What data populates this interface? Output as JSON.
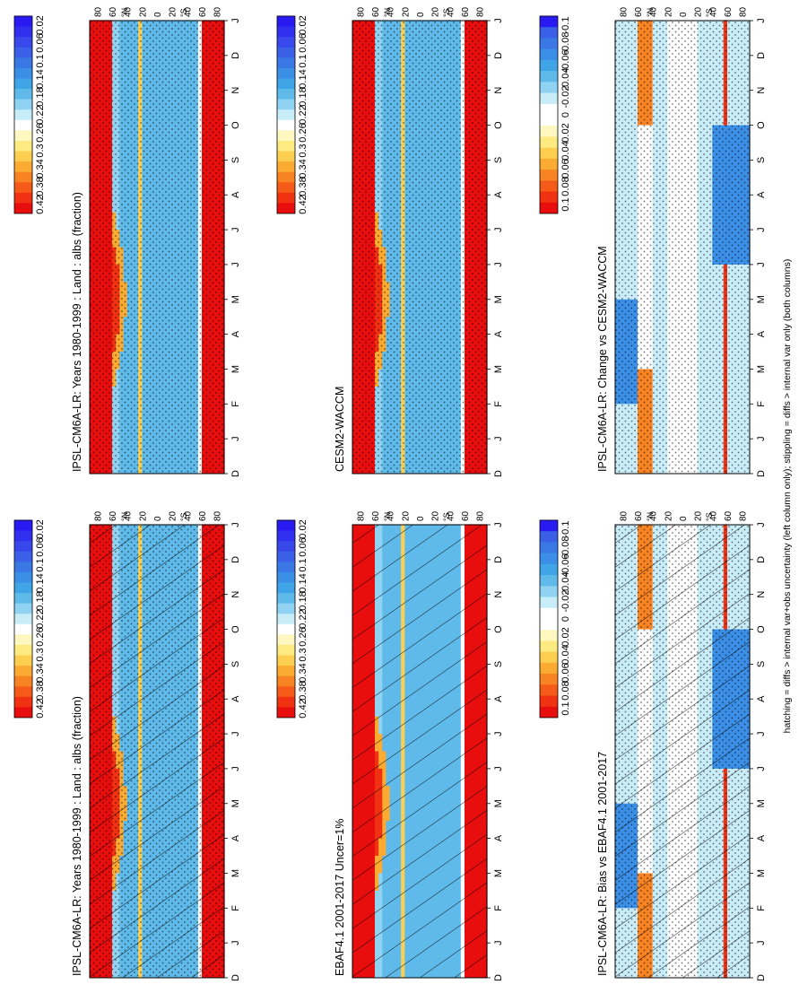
{
  "figure": {
    "footer": "hatching = diffs > internal var+obs uncertainty (left column only); stippling = diffs > internal var only (both columns)"
  },
  "palettes": {
    "abs": [
      "#e80e0e",
      "#f03212",
      "#f55a18",
      "#f88322",
      "#fbaa32",
      "#fdcf50",
      "#fdea80",
      "#fef8c0",
      "#ffffff",
      "#c8ecf8",
      "#8fd2f2",
      "#5fbaea",
      "#3fa5e6",
      "#3b8fe6",
      "#3a78e6",
      "#3a60e8",
      "#3848ea",
      "#3030ee",
      "#2a1af2"
    ],
    "diff": [
      "#e80e0e",
      "#f03212",
      "#f55a18",
      "#f88322",
      "#fbaa32",
      "#fdcf50",
      "#fdea80",
      "#fef8c0",
      "#ffffff",
      "#ffffff",
      "#c8ecf8",
      "#8fd2f2",
      "#5fbaea",
      "#3fa5e6",
      "#3b8fe6",
      "#3a78e6",
      "#3a60e8",
      "#2a1af2"
    ]
  },
  "chart_data": [
    {
      "id": "left-top",
      "type": "heatmap",
      "title": "IPSL-CM6A-LR: Years 1980-1999 : Land : albs (fraction)",
      "x_ticks": [
        "D",
        "J",
        "F",
        "M",
        "A",
        "M",
        "J",
        "J",
        "A",
        "S",
        "O",
        "N",
        "D",
        "J"
      ],
      "y_ticks": [
        "80",
        "60",
        "40",
        "20",
        "0",
        "20",
        "40",
        "60",
        "80"
      ],
      "y_unit_north": "°N",
      "y_unit_south": "°S",
      "colorbar_labels": [
        "0.42",
        "0.38",
        "0.34",
        "0.3",
        "0.26",
        "0.22",
        "0.18",
        "0.14",
        "0.1",
        "0.06",
        "0.02"
      ],
      "hatching": true,
      "stippling": true,
      "field": "abs"
    },
    {
      "id": "left-mid",
      "type": "heatmap",
      "title": "EBAF4.1 2001-2017 Uncer=1%",
      "x_ticks": [
        "D",
        "J",
        "F",
        "M",
        "A",
        "M",
        "J",
        "J",
        "A",
        "S",
        "O",
        "N",
        "D",
        "J"
      ],
      "y_ticks": [
        "80",
        "60",
        "40",
        "20",
        "0",
        "20",
        "40",
        "60",
        "80"
      ],
      "y_unit_north": "°N",
      "y_unit_south": "°S",
      "colorbar_labels": [
        "0.42",
        "0.38",
        "0.34",
        "0.3",
        "0.26",
        "0.22",
        "0.18",
        "0.14",
        "0.1",
        "0.06",
        "0.02"
      ],
      "hatching": true,
      "stippling": false,
      "field": "abs"
    },
    {
      "id": "left-bot",
      "type": "heatmap",
      "title": "IPSL-CM6A-LR: Bias vs EBAF4.1 2001-2017",
      "x_ticks": [
        "D",
        "J",
        "F",
        "M",
        "A",
        "M",
        "J",
        "J",
        "A",
        "S",
        "O",
        "N",
        "D",
        "J"
      ],
      "y_ticks": [
        "80",
        "60",
        "40",
        "20",
        "0",
        "20",
        "40",
        "60",
        "80"
      ],
      "y_unit_north": "°N",
      "y_unit_south": "°S",
      "colorbar_labels": [
        "0.1",
        "0.08",
        "0.06",
        "0.04",
        "0.02",
        "0",
        "-0.02",
        "-0.04",
        "-0.06",
        "-0.08",
        "-0.1"
      ],
      "hatching": true,
      "stippling": true,
      "field": "diff"
    },
    {
      "id": "right-top",
      "type": "heatmap",
      "title": "IPSL-CM6A-LR: Years 1980-1999 : Land : albs (fraction)",
      "x_ticks": [
        "D",
        "J",
        "F",
        "M",
        "A",
        "M",
        "J",
        "J",
        "A",
        "S",
        "O",
        "N",
        "D",
        "J"
      ],
      "y_ticks": [
        "80",
        "60",
        "40",
        "20",
        "0",
        "20",
        "40",
        "60",
        "80"
      ],
      "y_unit_north": "°N",
      "y_unit_south": "°S",
      "colorbar_labels": [
        "0.42",
        "0.38",
        "0.34",
        "0.3",
        "0.26",
        "0.22",
        "0.18",
        "0.14",
        "0.1",
        "0.06",
        "0.02"
      ],
      "hatching": false,
      "stippling": true,
      "field": "abs"
    },
    {
      "id": "right-mid",
      "type": "heatmap",
      "title": "CESM2-WACCM",
      "x_ticks": [
        "D",
        "J",
        "F",
        "M",
        "A",
        "M",
        "J",
        "J",
        "A",
        "S",
        "O",
        "N",
        "D",
        "J"
      ],
      "y_ticks": [
        "80",
        "60",
        "40",
        "20",
        "0",
        "20",
        "40",
        "60",
        "80"
      ],
      "y_unit_north": "°N",
      "y_unit_south": "°S",
      "colorbar_labels": [
        "0.42",
        "0.38",
        "0.34",
        "0.3",
        "0.26",
        "0.22",
        "0.18",
        "0.14",
        "0.1",
        "0.06",
        "0.02"
      ],
      "hatching": false,
      "stippling": true,
      "field": "abs"
    },
    {
      "id": "right-bot",
      "type": "heatmap",
      "title": "IPSL-CM6A-LR: Change vs CESM2-WACCM",
      "x_ticks": [
        "D",
        "J",
        "F",
        "M",
        "A",
        "M",
        "J",
        "J",
        "A",
        "S",
        "O",
        "N",
        "D",
        "J"
      ],
      "y_ticks": [
        "80",
        "60",
        "40",
        "20",
        "0",
        "20",
        "40",
        "60",
        "80"
      ],
      "y_unit_north": "°N",
      "y_unit_south": "°S",
      "colorbar_labels": [
        "0.1",
        "0.08",
        "0.06",
        "0.04",
        "0.02",
        "0",
        "-0.02",
        "-0.04",
        "-0.06",
        "-0.08",
        "-0.1"
      ],
      "hatching": false,
      "stippling": true,
      "field": "diff"
    }
  ]
}
